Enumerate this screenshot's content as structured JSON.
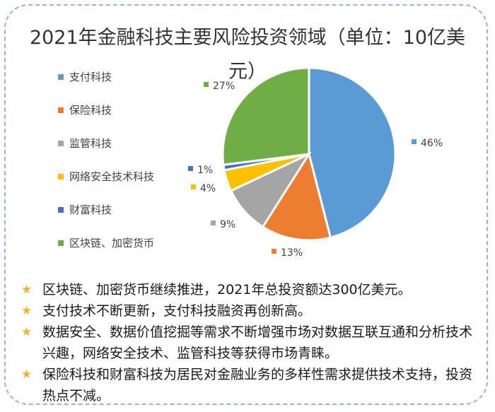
{
  "chart_data": {
    "type": "pie",
    "title": "2021年金融科技主要风险投资领域（单位：10亿美元）",
    "unit": "10亿美元",
    "slices": [
      {
        "name": "支付科技",
        "value": 46,
        "label": "46%",
        "color": "#5b9bd5"
      },
      {
        "name": "保险科技",
        "value": 13,
        "label": "13%",
        "color": "#ed7d31"
      },
      {
        "name": "监管科技",
        "value": 9,
        "label": "9%",
        "color": "#a5a5a5"
      },
      {
        "name": "网络安全技术科技",
        "value": 4,
        "label": "4%",
        "color": "#ffc000"
      },
      {
        "name": "财富科技",
        "value": 1,
        "label": "1%",
        "color": "#4472c4"
      },
      {
        "name": "区块链、加密货币",
        "value": 27,
        "label": "27%",
        "color": "#70ad47"
      }
    ],
    "legend_position": "left"
  },
  "notes": [
    "区块链、加密货币继续推进，2021年总投资额达300亿美元。",
    "支付技术不断更新，支付科技融资再创新高。",
    "数据安全、数据价值挖掘等需求不断增强市场对数据互联互通和分析技术兴趣，网络安全技术、监管科技等获得市场青睐。",
    "保险科技和财富科技为居民对金融业务的多样性需求提供技术支持，投资热点不减。"
  ],
  "bullet_icon": "star-icon"
}
